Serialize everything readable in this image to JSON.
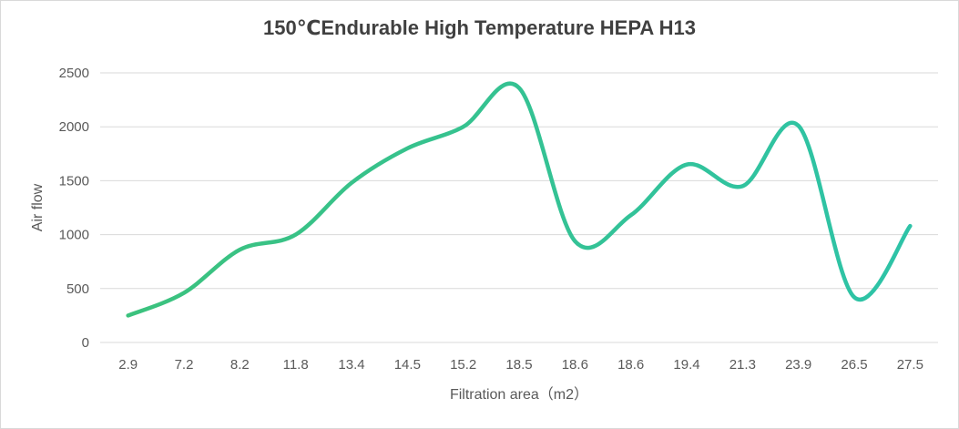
{
  "chart_data": {
    "type": "line",
    "title": "150℃Endurable High Temperature HEPA H13",
    "xlabel": "Filtration area（m2）",
    "ylabel": "Air flow",
    "categories": [
      "2.9",
      "7.2",
      "8.2",
      "11.8",
      "13.4",
      "14.5",
      "15.2",
      "18.5",
      "18.6",
      "18.6",
      "19.4",
      "21.3",
      "23.9",
      "26.5",
      "27.5"
    ],
    "series": [
      {
        "values": [
          250,
          460,
          860,
          1000,
          1480,
          1800,
          2000,
          2360,
          940,
          1180,
          1650,
          1450,
          2010,
          420,
          1080
        ]
      }
    ],
    "ylim": [
      0,
      2500
    ],
    "yticks": [
      0,
      500,
      1000,
      1500,
      2000,
      2500
    ],
    "grid": true,
    "legend": "none",
    "line_colors": [
      "#3cc27c",
      "#2dc3a9"
    ]
  }
}
